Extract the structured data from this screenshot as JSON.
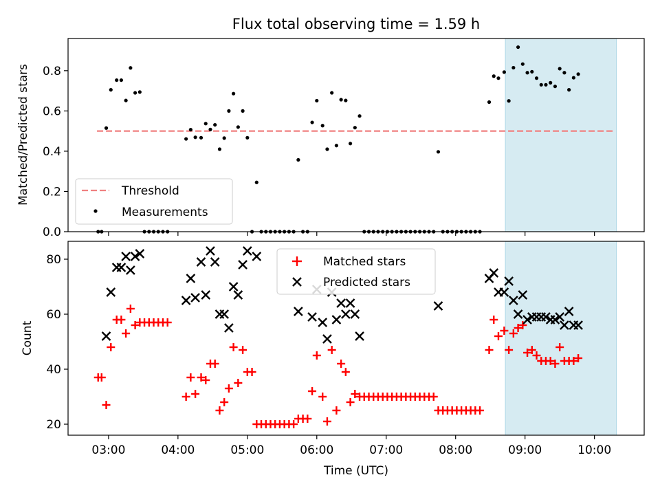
{
  "title": "Flux total observing time = 1.59 h",
  "xlabel": "Time (UTC)",
  "x_ticks": [
    "03:00",
    "04:00",
    "05:00",
    "06:00",
    "07:00",
    "08:00",
    "09:00",
    "10:00"
  ],
  "colors": {
    "threshold": "#f08080",
    "measurements": "#000000",
    "matched": "#ff0000",
    "predicted": "#000000",
    "highlight": "#add8e6"
  },
  "chart_data": [
    {
      "type": "scatter",
      "ylabel": "Matched/Predicted stars",
      "xlim": [
        "02:25",
        "10:43"
      ],
      "ylim": [
        0,
        0.96
      ],
      "y_ticks": [
        "0.0",
        "0.2",
        "0.4",
        "0.6",
        "0.8"
      ],
      "legend": {
        "placement": "lower-left",
        "threshold_label": "Threshold",
        "measurements_label": "Measurements"
      },
      "highlight_span": [
        "08:43",
        "10:19"
      ],
      "threshold": {
        "value": 0.5,
        "x_range": [
          "02:50",
          "10:17"
        ]
      },
      "measurements": [
        [
          "02:51",
          0
        ],
        [
          "02:54",
          0
        ],
        [
          "02:58",
          0.515
        ],
        [
          "03:02",
          0.705
        ],
        [
          "03:07",
          0.753
        ],
        [
          "03:11",
          0.753
        ],
        [
          "03:15",
          0.652
        ],
        [
          "03:19",
          0.814
        ],
        [
          "03:23",
          0.69
        ],
        [
          "03:27",
          0.694
        ],
        [
          "03:31",
          0
        ],
        [
          "03:35",
          0
        ],
        [
          "03:39",
          0
        ],
        [
          "03:43",
          0
        ],
        [
          "03:47",
          0
        ],
        [
          "03:51",
          0
        ],
        [
          "04:07",
          0.461
        ],
        [
          "04:11",
          0.507
        ],
        [
          "04:15",
          0.469
        ],
        [
          "04:20",
          0.467
        ],
        [
          "04:24",
          0.537
        ],
        [
          "04:28",
          0.508
        ],
        [
          "04:32",
          0.531
        ],
        [
          "04:36",
          0.41
        ],
        [
          "04:40",
          0.465
        ],
        [
          "04:44",
          0.6
        ],
        [
          "04:48",
          0.686
        ],
        [
          "04:52",
          0.52
        ],
        [
          "04:56",
          0.6
        ],
        [
          "05:00",
          0.467
        ],
        [
          "05:04",
          0
        ],
        [
          "05:08",
          0.245
        ],
        [
          "05:12",
          0
        ],
        [
          "05:16",
          0
        ],
        [
          "05:20",
          0
        ],
        [
          "05:24",
          0
        ],
        [
          "05:28",
          0
        ],
        [
          "05:32",
          0
        ],
        [
          "05:36",
          0
        ],
        [
          "05:40",
          0
        ],
        [
          "05:44",
          0.357
        ],
        [
          "05:48",
          0
        ],
        [
          "05:52",
          0
        ],
        [
          "05:56",
          0.543
        ],
        [
          "06:00",
          0.651
        ],
        [
          "06:05",
          0.527
        ],
        [
          "06:09",
          0.41
        ],
        [
          "06:13",
          0.69
        ],
        [
          "06:17",
          0.428
        ],
        [
          "06:21",
          0.656
        ],
        [
          "06:25",
          0.652
        ],
        [
          "06:29",
          0.438
        ],
        [
          "06:33",
          0.517
        ],
        [
          "06:37",
          0.575
        ],
        [
          "06:41",
          0
        ],
        [
          "06:45",
          0
        ],
        [
          "06:49",
          0
        ],
        [
          "06:53",
          0
        ],
        [
          "06:57",
          0
        ],
        [
          "07:01",
          0
        ],
        [
          "07:05",
          0
        ],
        [
          "07:09",
          0
        ],
        [
          "07:13",
          0
        ],
        [
          "07:17",
          0
        ],
        [
          "07:21",
          0
        ],
        [
          "07:25",
          0
        ],
        [
          "07:29",
          0
        ],
        [
          "07:33",
          0
        ],
        [
          "07:37",
          0
        ],
        [
          "07:41",
          0
        ],
        [
          "07:45",
          0.397
        ],
        [
          "07:49",
          0
        ],
        [
          "07:53",
          0
        ],
        [
          "07:57",
          0
        ],
        [
          "08:01",
          0
        ],
        [
          "08:05",
          0
        ],
        [
          "08:09",
          0
        ],
        [
          "08:13",
          0
        ],
        [
          "08:17",
          0
        ],
        [
          "08:21",
          0
        ],
        [
          "08:29",
          0.644
        ],
        [
          "08:33",
          0.773
        ],
        [
          "08:37",
          0.763
        ],
        [
          "08:42",
          0.793
        ],
        [
          "08:46",
          0.65
        ],
        [
          "08:50",
          0.815
        ],
        [
          "08:54",
          0.917
        ],
        [
          "08:58",
          0.833
        ],
        [
          "09:02",
          0.79
        ],
        [
          "09:06",
          0.795
        ],
        [
          "09:10",
          0.763
        ],
        [
          "09:14",
          0.73
        ],
        [
          "09:18",
          0.73
        ],
        [
          "09:22",
          0.74
        ],
        [
          "09:26",
          0.722
        ],
        [
          "09:30",
          0.81
        ],
        [
          "09:34",
          0.79
        ],
        [
          "09:38",
          0.705
        ],
        [
          "09:42",
          0.765
        ],
        [
          "09:46",
          0.783
        ]
      ]
    },
    {
      "type": "scatter",
      "ylabel": "Count",
      "xlim": [
        "02:25",
        "10:43"
      ],
      "ylim": [
        16,
        86.5
      ],
      "y_ticks": [
        "20",
        "40",
        "60",
        "80"
      ],
      "legend": {
        "placement": "upper-center",
        "matched_label": "Matched stars",
        "predicted_label": "Predicted stars"
      },
      "highlight_span": [
        "08:43",
        "10:19"
      ],
      "matched": [
        [
          "02:51",
          37
        ],
        [
          "02:54",
          37
        ],
        [
          "02:58",
          27
        ],
        [
          "03:02",
          48
        ],
        [
          "03:07",
          58
        ],
        [
          "03:11",
          58
        ],
        [
          "03:15",
          53
        ],
        [
          "03:19",
          62
        ],
        [
          "03:23",
          56
        ],
        [
          "03:27",
          57
        ],
        [
          "03:31",
          57
        ],
        [
          "03:35",
          57
        ],
        [
          "03:39",
          57
        ],
        [
          "03:43",
          57
        ],
        [
          "03:47",
          57
        ],
        [
          "03:51",
          57
        ],
        [
          "04:07",
          30
        ],
        [
          "04:11",
          37
        ],
        [
          "04:15",
          31
        ],
        [
          "04:20",
          37
        ],
        [
          "04:24",
          36
        ],
        [
          "04:28",
          42
        ],
        [
          "04:32",
          42
        ],
        [
          "04:36",
          25
        ],
        [
          "04:40",
          28
        ],
        [
          "04:44",
          33
        ],
        [
          "04:48",
          48
        ],
        [
          "04:52",
          35
        ],
        [
          "04:56",
          47
        ],
        [
          "05:00",
          39
        ],
        [
          "05:04",
          39
        ],
        [
          "05:08",
          20
        ],
        [
          "05:12",
          20
        ],
        [
          "05:16",
          20
        ],
        [
          "05:20",
          20
        ],
        [
          "05:24",
          20
        ],
        [
          "05:28",
          20
        ],
        [
          "05:32",
          20
        ],
        [
          "05:36",
          20
        ],
        [
          "05:40",
          20
        ],
        [
          "05:44",
          22
        ],
        [
          "05:48",
          22
        ],
        [
          "05:52",
          22
        ],
        [
          "05:56",
          32
        ],
        [
          "06:00",
          45
        ],
        [
          "06:05",
          30
        ],
        [
          "06:09",
          21
        ],
        [
          "06:13",
          47
        ],
        [
          "06:17",
          25
        ],
        [
          "06:21",
          42
        ],
        [
          "06:25",
          39
        ],
        [
          "06:29",
          28
        ],
        [
          "06:33",
          31
        ],
        [
          "06:37",
          30
        ],
        [
          "06:41",
          30
        ],
        [
          "06:45",
          30
        ],
        [
          "06:49",
          30
        ],
        [
          "06:53",
          30
        ],
        [
          "06:57",
          30
        ],
        [
          "07:01",
          30
        ],
        [
          "07:05",
          30
        ],
        [
          "07:09",
          30
        ],
        [
          "07:13",
          30
        ],
        [
          "07:17",
          30
        ],
        [
          "07:21",
          30
        ],
        [
          "07:25",
          30
        ],
        [
          "07:29",
          30
        ],
        [
          "07:33",
          30
        ],
        [
          "07:37",
          30
        ],
        [
          "07:41",
          30
        ],
        [
          "07:45",
          25
        ],
        [
          "07:49",
          25
        ],
        [
          "07:53",
          25
        ],
        [
          "07:57",
          25
        ],
        [
          "08:01",
          25
        ],
        [
          "08:05",
          25
        ],
        [
          "08:09",
          25
        ],
        [
          "08:13",
          25
        ],
        [
          "08:17",
          25
        ],
        [
          "08:21",
          25
        ],
        [
          "08:29",
          47
        ],
        [
          "08:33",
          58
        ],
        [
          "08:37",
          52
        ],
        [
          "08:42",
          54
        ],
        [
          "08:46",
          47
        ],
        [
          "08:50",
          53
        ],
        [
          "08:54",
          55
        ],
        [
          "08:58",
          56
        ],
        [
          "09:02",
          46
        ],
        [
          "09:06",
          47
        ],
        [
          "09:10",
          45
        ],
        [
          "09:14",
          43
        ],
        [
          "09:18",
          43
        ],
        [
          "09:22",
          43
        ],
        [
          "09:26",
          42
        ],
        [
          "09:30",
          48
        ],
        [
          "09:34",
          43
        ],
        [
          "09:38",
          43
        ],
        [
          "09:42",
          43
        ],
        [
          "09:46",
          44
        ]
      ],
      "predicted": [
        [
          "02:58",
          52
        ],
        [
          "03:02",
          68
        ],
        [
          "03:07",
          77
        ],
        [
          "03:11",
          77
        ],
        [
          "03:15",
          81
        ],
        [
          "03:19",
          76
        ],
        [
          "03:23",
          81
        ],
        [
          "03:27",
          82
        ],
        [
          "04:07",
          65
        ],
        [
          "04:11",
          73
        ],
        [
          "04:15",
          66
        ],
        [
          "04:20",
          79
        ],
        [
          "04:24",
          67
        ],
        [
          "04:28",
          83
        ],
        [
          "04:32",
          79
        ],
        [
          "04:36",
          60
        ],
        [
          "04:40",
          60
        ],
        [
          "04:44",
          55
        ],
        [
          "04:48",
          70
        ],
        [
          "04:52",
          67
        ],
        [
          "04:56",
          78
        ],
        [
          "05:00",
          83
        ],
        [
          "05:08",
          81
        ],
        [
          "05:44",
          61
        ],
        [
          "05:56",
          59
        ],
        [
          "06:00",
          69
        ],
        [
          "06:05",
          57
        ],
        [
          "06:09",
          51
        ],
        [
          "06:13",
          68
        ],
        [
          "06:17",
          58
        ],
        [
          "06:21",
          64
        ],
        [
          "06:25",
          60
        ],
        [
          "06:29",
          64
        ],
        [
          "06:33",
          60
        ],
        [
          "06:37",
          52
        ],
        [
          "07:45",
          63
        ],
        [
          "08:29",
          73
        ],
        [
          "08:33",
          75
        ],
        [
          "08:37",
          68
        ],
        [
          "08:42",
          68
        ],
        [
          "08:46",
          72
        ],
        [
          "08:50",
          65
        ],
        [
          "08:54",
          60
        ],
        [
          "08:58",
          67
        ],
        [
          "09:02",
          58
        ],
        [
          "09:06",
          59
        ],
        [
          "09:10",
          59
        ],
        [
          "09:14",
          59
        ],
        [
          "09:18",
          59
        ],
        [
          "09:22",
          58
        ],
        [
          "09:26",
          58
        ],
        [
          "09:30",
          59
        ],
        [
          "09:34",
          56
        ],
        [
          "09:38",
          61
        ],
        [
          "09:42",
          56
        ],
        [
          "09:46",
          56
        ]
      ]
    }
  ]
}
